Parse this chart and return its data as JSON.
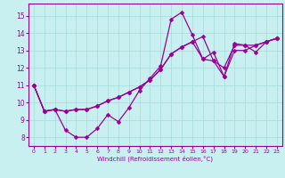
{
  "xlabel": "Windchill (Refroidissement éolien,°C)",
  "bg_color": "#c8f0f0",
  "line_color": "#990099",
  "grid_color": "#a8dada",
  "xlim": [
    -0.5,
    23.5
  ],
  "ylim": [
    7.5,
    15.7
  ],
  "yticks": [
    8,
    9,
    10,
    11,
    12,
    13,
    14,
    15
  ],
  "xticks": [
    0,
    1,
    2,
    3,
    4,
    5,
    6,
    7,
    8,
    9,
    10,
    11,
    12,
    13,
    14,
    15,
    16,
    17,
    18,
    19,
    20,
    21,
    22,
    23
  ],
  "line1_x": [
    0,
    1,
    2,
    3,
    4,
    5,
    6,
    7,
    8,
    9,
    10,
    11,
    12,
    13,
    14,
    15,
    16,
    17,
    18,
    19,
    20,
    21,
    22,
    23
  ],
  "line1_y": [
    11.0,
    9.5,
    9.6,
    8.4,
    8.0,
    8.0,
    8.5,
    9.3,
    8.9,
    9.7,
    10.7,
    11.4,
    12.1,
    14.8,
    15.2,
    13.9,
    12.5,
    12.4,
    11.5,
    13.4,
    13.3,
    12.9,
    13.5,
    13.7
  ],
  "line2_x": [
    0,
    1,
    2,
    3,
    4,
    5,
    6,
    7,
    8,
    9,
    10,
    11,
    12,
    13,
    14,
    15,
    16,
    17,
    18,
    19,
    20,
    21,
    22,
    23
  ],
  "line2_y": [
    11.0,
    9.5,
    9.6,
    9.5,
    9.6,
    9.6,
    9.8,
    10.1,
    10.3,
    10.6,
    10.9,
    11.3,
    11.9,
    12.8,
    13.2,
    13.5,
    13.8,
    12.4,
    12.0,
    13.3,
    13.3,
    13.3,
    13.5,
    13.7
  ],
  "line3_x": [
    0,
    1,
    2,
    3,
    4,
    5,
    6,
    7,
    8,
    9,
    10,
    11,
    12,
    13,
    14,
    15,
    16,
    17,
    18,
    19,
    20,
    21,
    22,
    23
  ],
  "line3_y": [
    11.0,
    9.5,
    9.6,
    9.5,
    9.6,
    9.6,
    9.8,
    10.1,
    10.3,
    10.6,
    10.9,
    11.3,
    11.9,
    12.8,
    13.2,
    13.5,
    12.5,
    12.9,
    11.5,
    13.0,
    13.0,
    13.3,
    13.5,
    13.7
  ]
}
